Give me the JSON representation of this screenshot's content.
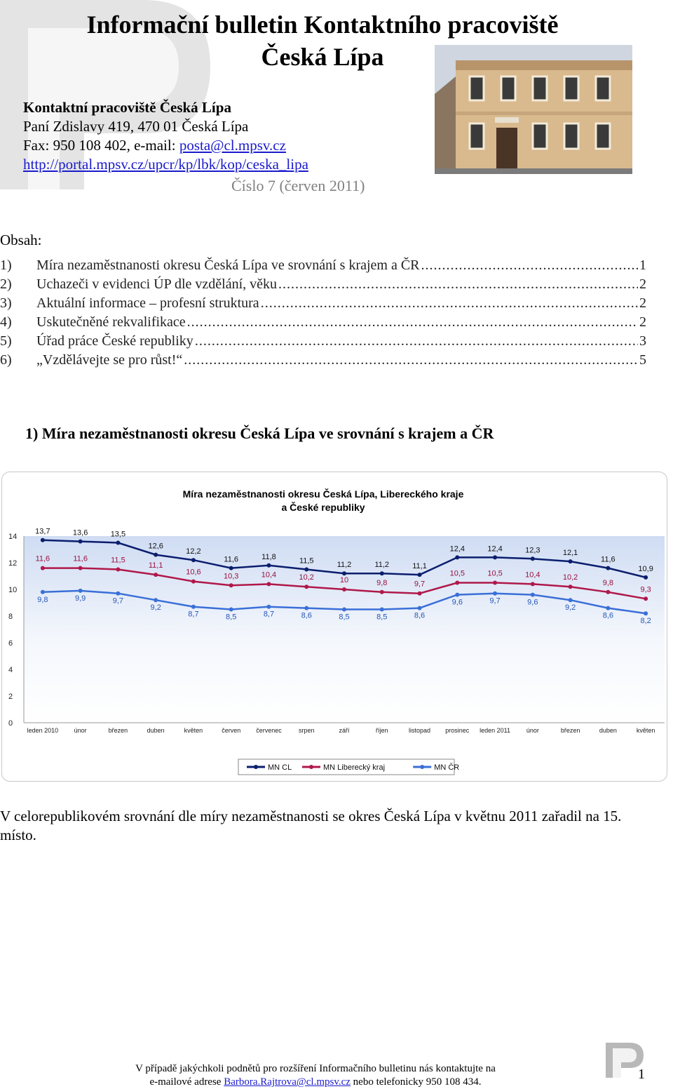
{
  "header": {
    "title_line1": "Informační bulletin Kontaktního pracoviště",
    "title_line2": "Česká Lípa",
    "office_name": "Kontaktní pracoviště Česká Lípa",
    "address": "Paní Zdislavy 419, 470 01 Česká Lípa",
    "fax_prefix": "Fax: 950 108 402, e-mail: ",
    "email": "posta@cl.mpsv.cz",
    "url": "http://portal.mpsv.cz/upcr/kp/lbk/kop/ceska_lipa",
    "issue": "Číslo 7 (červen 2011)"
  },
  "toc": {
    "heading": "Obsah:",
    "items": [
      {
        "num": "1)",
        "title": "Míra nezaměstnanosti okresu Česká Lípa ve srovnání s krajem a ČR",
        "page": "1"
      },
      {
        "num": "2)",
        "title": "Uchazeči v evidenci ÚP dle vzdělání, věku",
        "page": "2"
      },
      {
        "num": "3)",
        "title": "Aktuální informace – profesní struktura",
        "page": "2"
      },
      {
        "num": "4)",
        "title": "Uskutečněné rekvalifikace",
        "page": "2"
      },
      {
        "num": "5)",
        "title": "Úřad práce České republiky",
        "page": "3"
      },
      {
        "num": "6)",
        "title": "„Vzdělávejte se pro růst!“",
        "page": "5"
      }
    ]
  },
  "section": {
    "heading": "1)  Míra nezaměstnanosti okresu Česká Lípa ve srovnání s krajem a ČR"
  },
  "chart_data": {
    "type": "line",
    "title": "Míra nezaměstnanosti okresu Česká Lípa, Libereckého kraje a České republiky",
    "title_line1": "Míra nezaměstnanosti okresu Česká Lípa, Libereckého kraje",
    "title_line2": "a České republiky",
    "categories": [
      "leden 2010",
      "únor",
      "březen",
      "duben",
      "květen",
      "červen",
      "červenec",
      "srpen",
      "září",
      "říjen",
      "listopad",
      "prosinec",
      "leden 2011",
      "únor",
      "březen",
      "duben",
      "květen"
    ],
    "ylim": [
      0,
      14
    ],
    "yticks": [
      0,
      2,
      4,
      6,
      8,
      10,
      12,
      14
    ],
    "legend_position": "bottom",
    "series": [
      {
        "name": "MN CL",
        "color": "#0b1e6e",
        "values": [
          13.7,
          13.6,
          13.5,
          12.6,
          12.2,
          11.6,
          11.8,
          11.5,
          11.2,
          11.2,
          11.1,
          12.4,
          12.4,
          12.3,
          12.1,
          11.6,
          10.9
        ]
      },
      {
        "name": "MN Liberecký kraj",
        "color": "#b0184a",
        "values": [
          11.6,
          11.6,
          11.5,
          11.1,
          10.6,
          10.3,
          10.4,
          10.2,
          10.0,
          9.8,
          9.7,
          10.5,
          10.5,
          10.4,
          10.2,
          9.8,
          9.3
        ]
      },
      {
        "name": "MN ČR",
        "color": "#3a6fd8",
        "values": [
          9.8,
          9.9,
          9.7,
          9.2,
          8.7,
          8.5,
          8.7,
          8.6,
          8.5,
          8.5,
          8.6,
          9.6,
          9.7,
          9.6,
          9.2,
          8.6,
          8.2
        ]
      }
    ]
  },
  "summary": "V celorepublikovém srovnání dle míry nezaměstnanosti se okres Česká Lípa v květnu 2011 zařadil na 15. místo.",
  "footer": {
    "line1": "V případě jakýchkoli podnětů pro rozšíření Informačního bulletinu nás kontaktujte na",
    "line2_prefix": "e-mailové adrese ",
    "email": "Barbora.Rajtrova@cl.mpsv.cz",
    "line2_suffix": " nebo telefonicky 950 108 434.",
    "page_number": "1"
  },
  "icons": {
    "logo": "up-logo-icon",
    "photo": "building-photo"
  }
}
